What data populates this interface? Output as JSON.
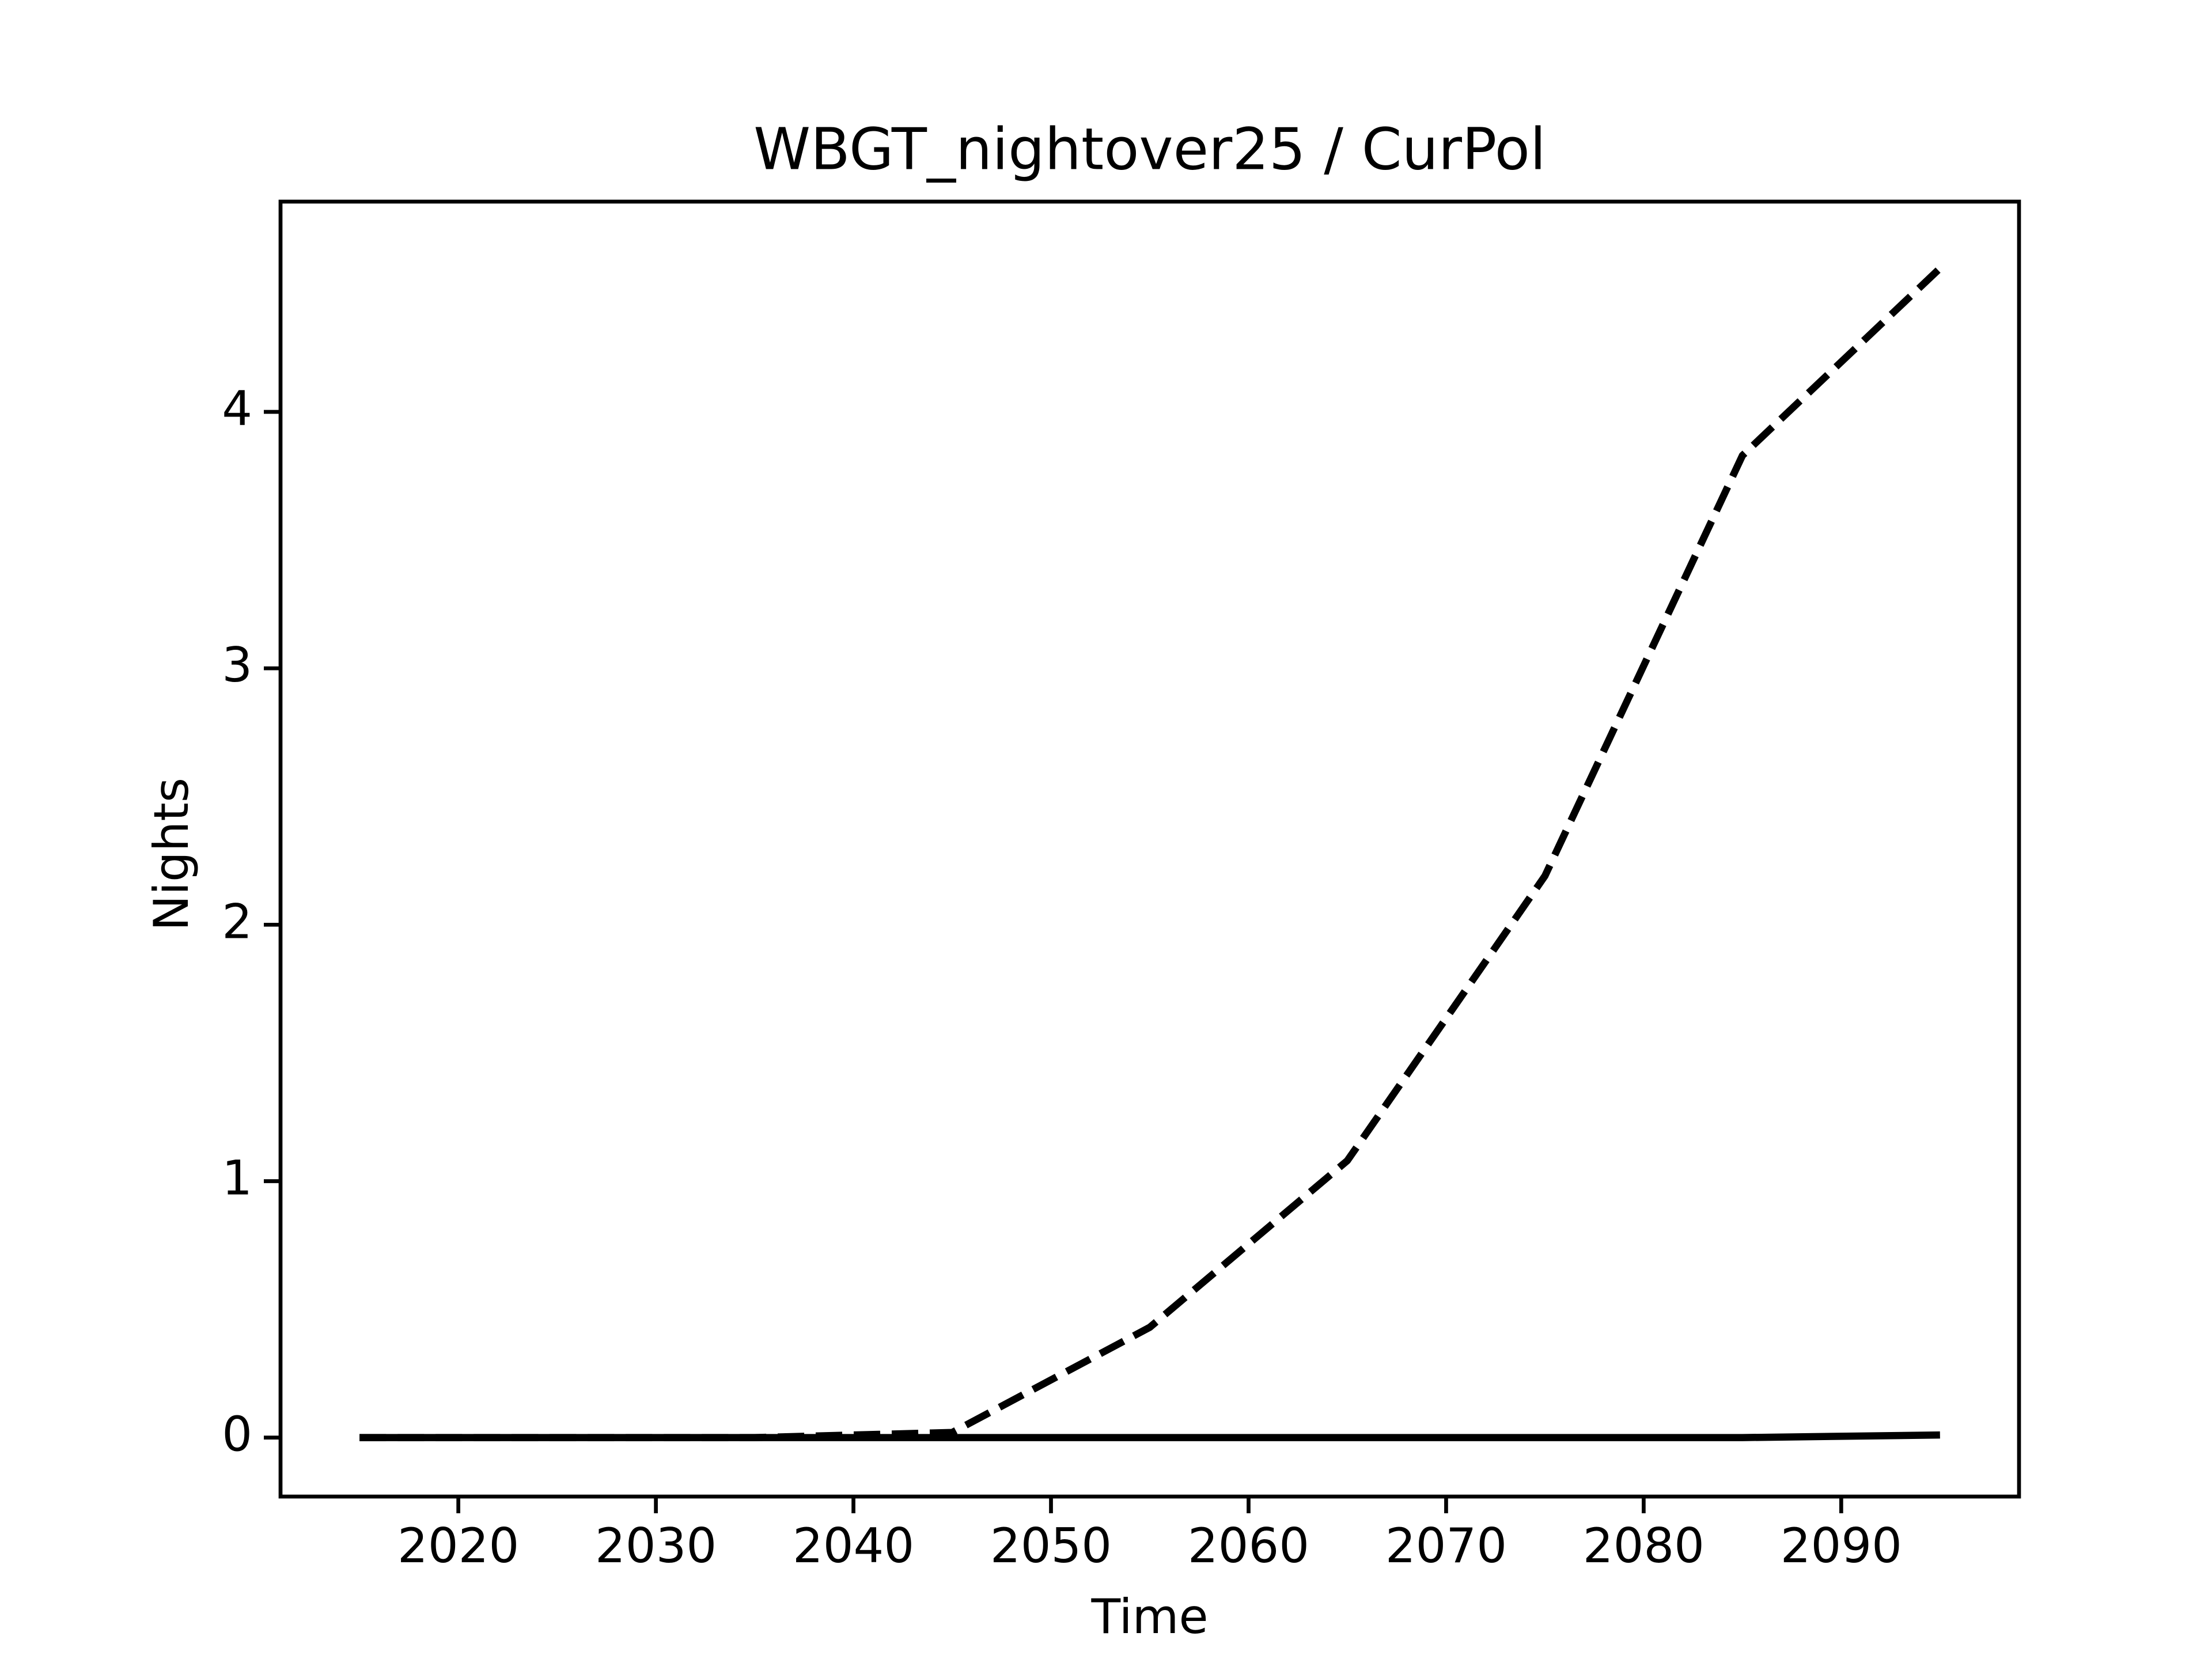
{
  "chart_data": {
    "type": "line",
    "title": "WBGT_nightover25 / CurPol",
    "xlabel": "Time",
    "ylabel": "Nights",
    "x": [
      2015,
      2025,
      2035,
      2045,
      2055,
      2065,
      2075,
      2085,
      2095
    ],
    "series": [
      {
        "color": "#000000",
        "dash": true,
        "values": [
          0,
          0,
          0,
          0.02,
          0.43,
          1.08,
          2.19,
          3.83,
          4.56
        ]
      },
      {
        "color": "#000000",
        "dash": false,
        "values": [
          0,
          0,
          0,
          0,
          0,
          0,
          0,
          0,
          0.01
        ]
      }
    ],
    "xlim": [
      2011,
      2099
    ],
    "ylim": [
      -0.23,
      4.82
    ],
    "xticks": [
      2020,
      2030,
      2040,
      2050,
      2060,
      2070,
      2080,
      2090
    ],
    "yticks": [
      0,
      1,
      2,
      3,
      4
    ]
  }
}
